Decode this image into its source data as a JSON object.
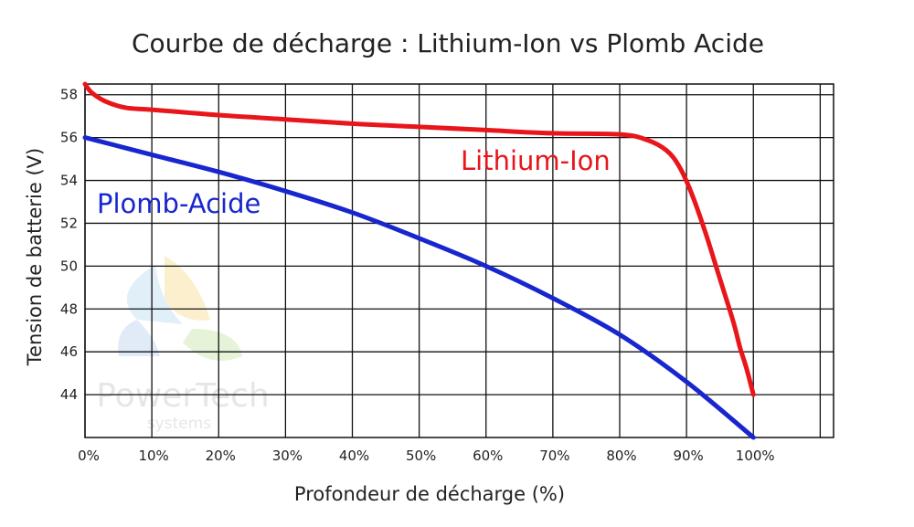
{
  "chart_data": {
    "type": "line",
    "title": "Courbe de décharge : Lithium-Ion vs Plomb Acide",
    "xlabel": "Profondeur de décharge (%)",
    "ylabel": "Tension de batterie (V)",
    "xlim": [
      0,
      112
    ],
    "ylim": [
      42,
      58.5
    ],
    "x_ticks": [
      0,
      10,
      20,
      30,
      40,
      50,
      60,
      70,
      80,
      90,
      100
    ],
    "x_tick_labels": [
      "0%",
      "10%",
      "20%",
      "30%",
      "40%",
      "50%",
      "60%",
      "70%",
      "80%",
      "90%",
      "100%"
    ],
    "y_ticks": [
      44,
      46,
      48,
      50,
      52,
      54,
      56,
      58
    ],
    "y_tick_labels": [
      "44",
      "46",
      "48",
      "50",
      "52",
      "54",
      "56",
      "58"
    ],
    "grid": true,
    "series": [
      {
        "name": "Lithium-Ion",
        "color": "#e8161b",
        "x": [
          0,
          1,
          3,
          6,
          10,
          20,
          30,
          40,
          50,
          60,
          70,
          80,
          84,
          87,
          89,
          91,
          93,
          95,
          97,
          98,
          99,
          100
        ],
        "y": [
          58.5,
          58.1,
          57.7,
          57.4,
          57.3,
          57.05,
          56.85,
          56.65,
          56.5,
          56.35,
          56.2,
          56.15,
          55.9,
          55.4,
          54.6,
          53.2,
          51.4,
          49.4,
          47.4,
          46.2,
          45.2,
          44.0
        ]
      },
      {
        "name": "Plomb-Acide",
        "color": "#1826cf",
        "x": [
          0,
          10,
          20,
          30,
          40,
          50,
          60,
          70,
          80,
          90,
          100
        ],
        "y": [
          56.0,
          55.2,
          54.4,
          53.5,
          52.5,
          51.3,
          50.0,
          48.5,
          46.8,
          44.6,
          42.0
        ]
      }
    ]
  },
  "watermark": {
    "line1": "PowerTech",
    "line2": "systems"
  }
}
